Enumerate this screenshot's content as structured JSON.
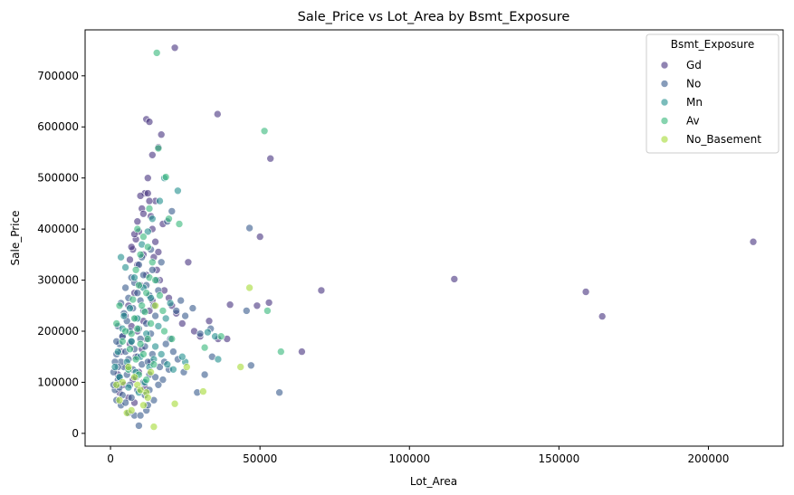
{
  "chart_data": {
    "type": "scatter",
    "title": "Sale_Price vs Lot_Area by Bsmt_Exposure",
    "xlabel": "Lot_Area",
    "ylabel": "Sale_Price",
    "xlim": [
      -8500,
      225000
    ],
    "ylim": [
      -25000,
      790000
    ],
    "xticks": [
      0,
      50000,
      100000,
      150000,
      200000
    ],
    "xtick_labels": [
      "0",
      "50000",
      "100000",
      "150000",
      "200000"
    ],
    "yticks": [
      0,
      100000,
      200000,
      300000,
      400000,
      500000,
      600000,
      700000
    ],
    "ytick_labels": [
      "0",
      "100000",
      "200000",
      "300000",
      "400000",
      "500000",
      "600000",
      "700000"
    ],
    "grid": false,
    "legend": {
      "title": "Bsmt_Exposure",
      "position": "top-right"
    },
    "series": [
      {
        "name": "Gd",
        "color": "#46327e",
        "points": [
          [
            21500,
            755000
          ],
          [
            35800,
            625000
          ],
          [
            12000,
            615000
          ],
          [
            13000,
            610000
          ],
          [
            53500,
            538000
          ],
          [
            50000,
            385000
          ],
          [
            70500,
            280000
          ],
          [
            115000,
            302000
          ],
          [
            159000,
            277000
          ],
          [
            164500,
            229000
          ],
          [
            215000,
            375000
          ],
          [
            64000,
            160000
          ],
          [
            53000,
            256000
          ],
          [
            49000,
            250000
          ],
          [
            40000,
            252000
          ],
          [
            39000,
            185000
          ],
          [
            17000,
            585000
          ],
          [
            16000,
            560000
          ],
          [
            14000,
            545000
          ],
          [
            11500,
            470000
          ],
          [
            12500,
            500000
          ],
          [
            15000,
            455000
          ],
          [
            10500,
            440000
          ],
          [
            13500,
            425000
          ],
          [
            9500,
            395000
          ],
          [
            8500,
            380000
          ],
          [
            7500,
            360000
          ],
          [
            11000,
            350000
          ],
          [
            9000,
            330000
          ],
          [
            12000,
            310000
          ],
          [
            10000,
            290000
          ],
          [
            8000,
            275000
          ],
          [
            14000,
            260000
          ],
          [
            6000,
            250000
          ],
          [
            13000,
            240000
          ],
          [
            5000,
            230000
          ],
          [
            11000,
            220000
          ],
          [
            7000,
            210000
          ],
          [
            9000,
            200000
          ],
          [
            4000,
            190000
          ],
          [
            12000,
            185000
          ],
          [
            6500,
            175000
          ],
          [
            10500,
            165000
          ],
          [
            3500,
            160000
          ],
          [
            8500,
            150000
          ],
          [
            13500,
            140000
          ],
          [
            5500,
            130000
          ],
          [
            9500,
            120000
          ],
          [
            2500,
            115000
          ],
          [
            7500,
            105000
          ],
          [
            4500,
            95000
          ],
          [
            11500,
            90000
          ],
          [
            3000,
            80000
          ],
          [
            6000,
            70000
          ],
          [
            8000,
            60000
          ],
          [
            14500,
            345000
          ],
          [
            15500,
            320000
          ],
          [
            16500,
            300000
          ],
          [
            18000,
            280000
          ],
          [
            17500,
            410000
          ],
          [
            19500,
            265000
          ],
          [
            20500,
            250000
          ],
          [
            22000,
            235000
          ],
          [
            24000,
            215000
          ],
          [
            26000,
            335000
          ],
          [
            28000,
            200000
          ],
          [
            30000,
            190000
          ],
          [
            33000,
            220000
          ],
          [
            36000,
            185000
          ],
          [
            12500,
            470000
          ],
          [
            10000,
            465000
          ],
          [
            13000,
            455000
          ],
          [
            11000,
            430000
          ],
          [
            9000,
            415000
          ],
          [
            14000,
            400000
          ],
          [
            8000,
            390000
          ],
          [
            15000,
            375000
          ],
          [
            7000,
            365000
          ],
          [
            16000,
            355000
          ],
          [
            6500,
            340000
          ]
        ]
      },
      {
        "name": "No",
        "color": "#375a8c",
        "points": [
          [
            46500,
            402000
          ],
          [
            47000,
            133000
          ],
          [
            56500,
            80000
          ],
          [
            45500,
            240000
          ],
          [
            29000,
            80000
          ],
          [
            31500,
            115000
          ],
          [
            34000,
            150000
          ],
          [
            20500,
            435000
          ],
          [
            19000,
            415000
          ],
          [
            22000,
            240000
          ],
          [
            25000,
            230000
          ],
          [
            23500,
            260000
          ],
          [
            27500,
            245000
          ],
          [
            30000,
            195000
          ],
          [
            33500,
            205000
          ],
          [
            9500,
            15000
          ],
          [
            8000,
            35000
          ],
          [
            10000,
            35000
          ],
          [
            6000,
            40000
          ],
          [
            12000,
            45000
          ],
          [
            3500,
            55000
          ],
          [
            5000,
            60000
          ],
          [
            2000,
            65000
          ],
          [
            7000,
            70000
          ],
          [
            4000,
            75000
          ],
          [
            1500,
            85000
          ],
          [
            9000,
            85000
          ],
          [
            3000,
            90000
          ],
          [
            6500,
            95000
          ],
          [
            11000,
            100000
          ],
          [
            2500,
            105000
          ],
          [
            8500,
            110000
          ],
          [
            5500,
            115000
          ],
          [
            13000,
            115000
          ],
          [
            1000,
            120000
          ],
          [
            7500,
            125000
          ],
          [
            4500,
            130000
          ],
          [
            10500,
            135000
          ],
          [
            3500,
            140000
          ],
          [
            12500,
            140000
          ],
          [
            6000,
            145000
          ],
          [
            9000,
            150000
          ],
          [
            2000,
            155000
          ],
          [
            14000,
            155000
          ],
          [
            5000,
            160000
          ],
          [
            8000,
            165000
          ],
          [
            11500,
            170000
          ],
          [
            3000,
            175000
          ],
          [
            7000,
            180000
          ],
          [
            10000,
            185000
          ],
          [
            4000,
            190000
          ],
          [
            13500,
            195000
          ],
          [
            6500,
            200000
          ],
          [
            9500,
            205000
          ],
          [
            2500,
            210000
          ],
          [
            12000,
            215000
          ],
          [
            5500,
            220000
          ],
          [
            8500,
            225000
          ],
          [
            15000,
            230000
          ],
          [
            4500,
            235000
          ],
          [
            11000,
            240000
          ],
          [
            7500,
            245000
          ],
          [
            14500,
            250000
          ],
          [
            3500,
            255000
          ],
          [
            10000,
            260000
          ],
          [
            6000,
            265000
          ],
          [
            13000,
            270000
          ],
          [
            9000,
            275000
          ],
          [
            16000,
            280000
          ],
          [
            5000,
            285000
          ],
          [
            12000,
            290000
          ],
          [
            8000,
            295000
          ],
          [
            15500,
            300000
          ],
          [
            7000,
            305000
          ],
          [
            11000,
            310000
          ],
          [
            14000,
            320000
          ],
          [
            9500,
            330000
          ],
          [
            17000,
            335000
          ],
          [
            10500,
            345000
          ],
          [
            13500,
            360000
          ],
          [
            16500,
            130000
          ],
          [
            18000,
            140000
          ],
          [
            19500,
            125000
          ],
          [
            21000,
            160000
          ],
          [
            17500,
            105000
          ],
          [
            20000,
            185000
          ],
          [
            16000,
            95000
          ],
          [
            18500,
            175000
          ],
          [
            22500,
            145000
          ],
          [
            24500,
            120000
          ],
          [
            13000,
            85000
          ],
          [
            15000,
            110000
          ],
          [
            11500,
            75000
          ],
          [
            14500,
            65000
          ],
          [
            12500,
            55000
          ],
          [
            1000,
            95000
          ],
          [
            1500,
            140000
          ],
          [
            2000,
            180000
          ],
          [
            2500,
            130000
          ],
          [
            3000,
            110000
          ]
        ]
      },
      {
        "name": "Mn",
        "color": "#21908d",
        "points": [
          [
            22500,
            475000
          ],
          [
            18000,
            500000
          ],
          [
            16500,
            455000
          ],
          [
            14000,
            420000
          ],
          [
            12500,
            395000
          ],
          [
            10500,
            370000
          ],
          [
            3500,
            345000
          ],
          [
            5000,
            325000
          ],
          [
            8000,
            305000
          ],
          [
            11000,
            285000
          ],
          [
            13500,
            265000
          ],
          [
            6500,
            245000
          ],
          [
            9000,
            225000
          ],
          [
            4000,
            205000
          ],
          [
            12000,
            195000
          ],
          [
            7000,
            180000
          ],
          [
            15000,
            170000
          ],
          [
            2500,
            160000
          ],
          [
            10000,
            150000
          ],
          [
            5500,
            140000
          ],
          [
            13000,
            130000
          ],
          [
            8500,
            120000
          ],
          [
            3000,
            110000
          ],
          [
            11500,
            100000
          ],
          [
            6000,
            90000
          ],
          [
            9500,
            80000
          ],
          [
            14500,
            145000
          ],
          [
            17000,
            155000
          ],
          [
            19000,
            135000
          ],
          [
            21000,
            125000
          ],
          [
            25000,
            140000
          ],
          [
            32500,
            198000
          ],
          [
            35000,
            190000
          ],
          [
            36000,
            145000
          ],
          [
            24000,
            150000
          ],
          [
            20000,
            255000
          ],
          [
            18500,
            225000
          ],
          [
            16000,
            210000
          ],
          [
            1500,
            130000
          ],
          [
            4500,
            230000
          ]
        ]
      },
      {
        "name": "Av",
        "color": "#35b779",
        "points": [
          [
            15500,
            745000
          ],
          [
            51500,
            592000
          ],
          [
            16000,
            558000
          ],
          [
            18500,
            502000
          ],
          [
            23000,
            410000
          ],
          [
            19500,
            420000
          ],
          [
            52500,
            240000
          ],
          [
            57000,
            160000
          ],
          [
            31500,
            168000
          ],
          [
            37000,
            190000
          ],
          [
            9000,
            400000
          ],
          [
            11000,
            385000
          ],
          [
            12500,
            365000
          ],
          [
            10000,
            350000
          ],
          [
            14000,
            335000
          ],
          [
            8500,
            320000
          ],
          [
            13000,
            305000
          ],
          [
            9500,
            290000
          ],
          [
            12000,
            275000
          ],
          [
            7500,
            262000
          ],
          [
            10500,
            250000
          ],
          [
            11500,
            238000
          ],
          [
            8000,
            225000
          ],
          [
            13500,
            215000
          ],
          [
            9000,
            205000
          ],
          [
            7000,
            195000
          ],
          [
            12500,
            185000
          ],
          [
            10000,
            175000
          ],
          [
            6500,
            165000
          ],
          [
            11000,
            155000
          ],
          [
            8500,
            145000
          ],
          [
            14500,
            135000
          ],
          [
            6000,
            125000
          ],
          [
            9500,
            115000
          ],
          [
            12000,
            105000
          ],
          [
            3000,
            250000
          ],
          [
            2000,
            215000
          ],
          [
            4000,
            180000
          ],
          [
            5000,
            200000
          ],
          [
            15000,
            300000
          ],
          [
            16500,
            270000
          ],
          [
            17500,
            240000
          ],
          [
            18000,
            200000
          ],
          [
            20500,
            185000
          ],
          [
            13000,
            440000
          ]
        ]
      },
      {
        "name": "No_Basement",
        "color": "#a5db36",
        "points": [
          [
            46500,
            285000
          ],
          [
            43500,
            130000
          ],
          [
            31000,
            82000
          ],
          [
            21500,
            58000
          ],
          [
            14500,
            13000
          ],
          [
            5500,
            40000
          ],
          [
            7000,
            45000
          ],
          [
            11000,
            55000
          ],
          [
            12000,
            80000
          ],
          [
            9000,
            95000
          ],
          [
            4000,
            100000
          ],
          [
            13500,
            120000
          ],
          [
            25500,
            130000
          ],
          [
            6000,
            130000
          ],
          [
            10000,
            85000
          ],
          [
            3000,
            65000
          ],
          [
            8000,
            110000
          ],
          [
            15000,
            250000
          ],
          [
            2000,
            95000
          ],
          [
            12500,
            70000
          ]
        ]
      }
    ]
  }
}
